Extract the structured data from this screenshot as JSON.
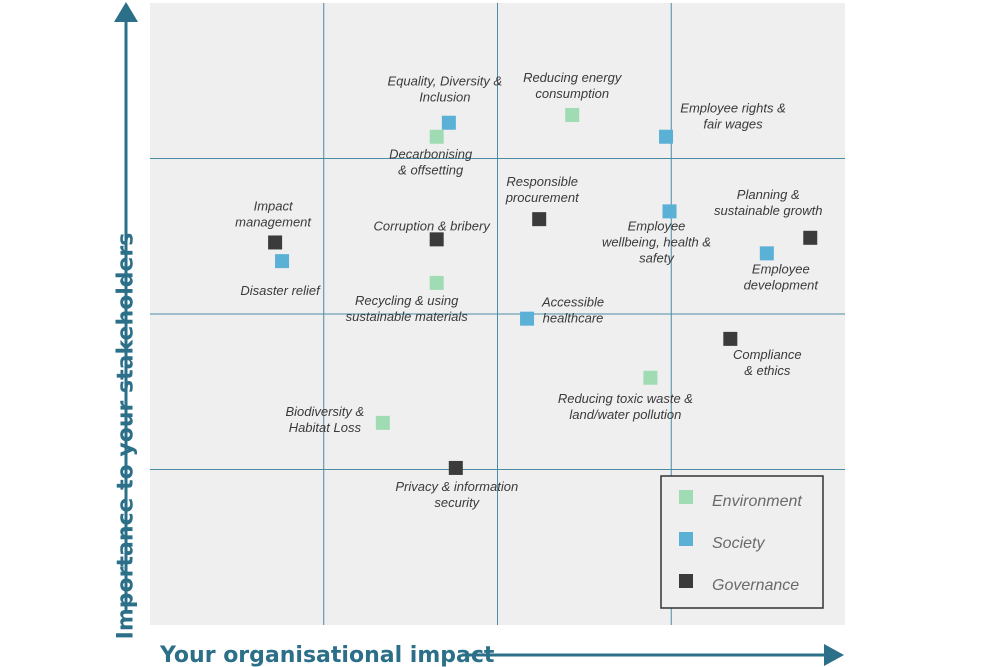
{
  "colors": {
    "Environment": "#9fdcb4",
    "Society": "#5bb0d6",
    "Governance": "#3b3b3b",
    "axis": "#2b6f88",
    "plot_bg": "#efefef",
    "grid": "#4b8ca6"
  },
  "chart_data": {
    "type": "scatter",
    "title": "",
    "xlabel": "Your organisational impact",
    "ylabel": "Importance to your stakeholders",
    "xlim": [
      0,
      400
    ],
    "ylim": [
      0,
      400
    ],
    "grid": true,
    "legend_position": "bottom-right",
    "legend": [
      "Environment",
      "Society",
      "Governance"
    ],
    "points": [
      {
        "name": "Equality, Diversity & Inclusion",
        "lines": [
          "Equality, Diversity &",
          "Inclusion"
        ],
        "category": "Society",
        "x": 172,
        "y": 323
      },
      {
        "name": "Decarbonising & offsetting",
        "lines": [
          "Decarbonising",
          "& offsetting"
        ],
        "category": "Environment",
        "x": 165,
        "y": 314
      },
      {
        "name": "Reducing energy consumption",
        "lines": [
          "Reducing energy",
          "consumption"
        ],
        "category": "Environment",
        "x": 243,
        "y": 328
      },
      {
        "name": "Employee rights & fair wages",
        "lines": [
          "Employee rights &",
          "fair wages"
        ],
        "category": "Society",
        "x": 297,
        "y": 314
      },
      {
        "name": "Impact management",
        "lines": [
          "Impact",
          "management"
        ],
        "category": "Governance",
        "x": 72,
        "y": 246
      },
      {
        "name": "Disaster relief",
        "lines": [
          "Disaster relief"
        ],
        "category": "Society",
        "x": 76,
        "y": 234
      },
      {
        "name": "Corruption & bribery",
        "lines": [
          "Corruption & bribery"
        ],
        "category": "Governance",
        "x": 165,
        "y": 248
      },
      {
        "name": "Responsible procurement",
        "lines": [
          "Responsible",
          "procurement"
        ],
        "category": "Governance",
        "x": 224,
        "y": 261
      },
      {
        "name": "Employee wellbeing, health & safety",
        "lines": [
          "Employee",
          "wellbeing, health &",
          "safety"
        ],
        "category": "Society",
        "x": 299,
        "y": 266
      },
      {
        "name": "Planning & sustainable growth",
        "lines": [
          "Planning &",
          "sustainable growth"
        ],
        "category": "Governance",
        "x": 380,
        "y": 249
      },
      {
        "name": "Employee development",
        "lines": [
          "Employee",
          "development"
        ],
        "category": "Society",
        "x": 355,
        "y": 239
      },
      {
        "name": "Recycling & using sustainable materials",
        "lines": [
          "Recycling & using",
          "sustainable materials"
        ],
        "category": "Environment",
        "x": 165,
        "y": 220
      },
      {
        "name": "Accessible healthcare",
        "lines": [
          "Accessible",
          "healthcare"
        ],
        "category": "Society",
        "x": 217,
        "y": 197
      },
      {
        "name": "Compliance & ethics",
        "lines": [
          "Compliance",
          "& ethics"
        ],
        "category": "Governance",
        "x": 334,
        "y": 184
      },
      {
        "name": "Reducing toxic waste & land/water pollution",
        "lines": [
          "Reducing toxic waste &",
          "land/water pollution"
        ],
        "category": "Environment",
        "x": 288,
        "y": 159
      },
      {
        "name": "Biodiversity & Habitat Loss",
        "lines": [
          "Biodiversity &",
          "Habitat Loss"
        ],
        "category": "Environment",
        "x": 134,
        "y": 130
      },
      {
        "name": "Privacy & information security",
        "lines": [
          "Privacy & information",
          "security"
        ],
        "category": "Governance",
        "x": 176,
        "y": 101
      }
    ]
  }
}
